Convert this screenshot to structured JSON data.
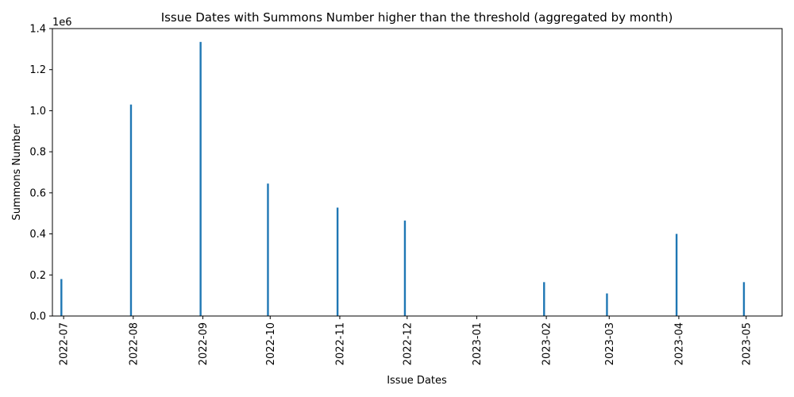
{
  "chart_data": {
    "type": "bar",
    "title": "Issue Dates with Summons Number higher than the threshold (aggregated by month)",
    "xlabel": "Issue Dates",
    "ylabel": "Summons Number",
    "y_offset_label": "1e6",
    "x_ticks": [
      "2022-07",
      "2022-08",
      "2022-09",
      "2022-10",
      "2022-11",
      "2022-12",
      "2023-01",
      "2023-02",
      "2023-03",
      "2023-04",
      "2023-05"
    ],
    "y_ticks": [
      "0.0",
      "0.2",
      "0.4",
      "0.6",
      "0.8",
      "1.0",
      "1.2",
      "1.4"
    ],
    "xlim": [
      "2022-06-26",
      "2023-05-17"
    ],
    "ylim": [
      0,
      1400000
    ],
    "grid": false,
    "bar_color": "#1f77b4",
    "bars": [
      {
        "x": "2022-06-30",
        "y": 180000
      },
      {
        "x": "2022-07-31",
        "y": 1030000
      },
      {
        "x": "2022-08-31",
        "y": 1335000
      },
      {
        "x": "2022-09-30",
        "y": 645000
      },
      {
        "x": "2022-10-31",
        "y": 528000
      },
      {
        "x": "2022-11-30",
        "y": 465000
      },
      {
        "x": "2023-01-31",
        "y": 165000
      },
      {
        "x": "2023-02-28",
        "y": 110000
      },
      {
        "x": "2023-03-31",
        "y": 400000
      },
      {
        "x": "2023-04-30",
        "y": 165000
      }
    ]
  }
}
